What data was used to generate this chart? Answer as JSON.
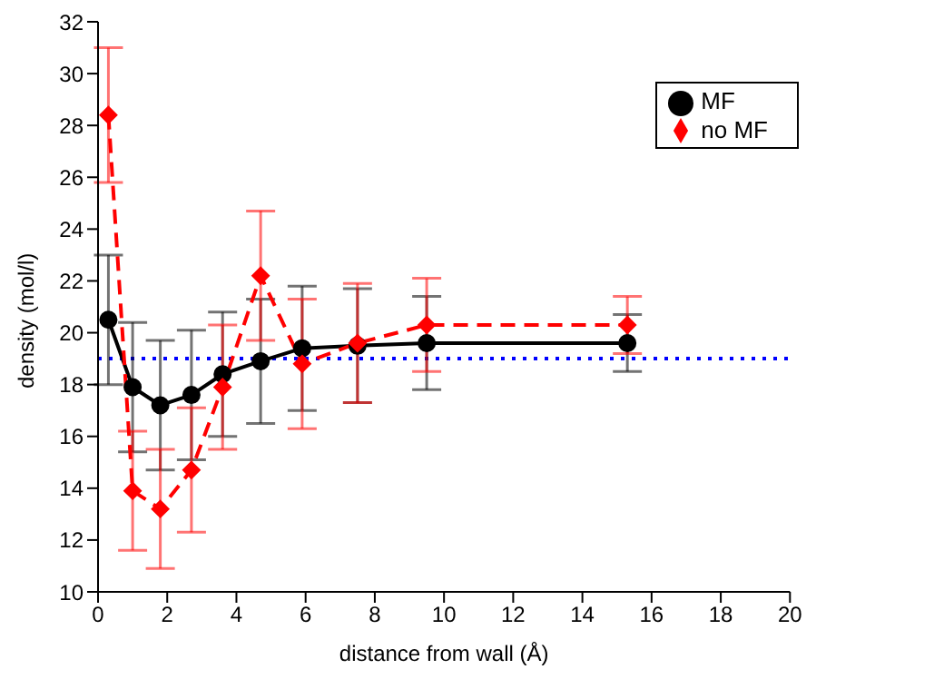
{
  "chart_data": {
    "type": "line",
    "xlabel": "distance from wall (Å)",
    "ylabel": "density (mol/l)",
    "xlim": [
      0,
      20
    ],
    "xticks": [
      0,
      2,
      4,
      6,
      8,
      10,
      12,
      14,
      16,
      18,
      20
    ],
    "ylim": [
      10,
      32
    ],
    "yticks": [
      10,
      12,
      14,
      16,
      18,
      20,
      22,
      24,
      26,
      28,
      30,
      32
    ],
    "legend": "top right",
    "series": [
      {
        "name": "MF",
        "color": "#000000",
        "marker": "circle",
        "line_style": "solid",
        "x": [
          0.3,
          1.0,
          1.8,
          2.7,
          3.6,
          4.7,
          5.9,
          7.5,
          9.5,
          15.3
        ],
        "values": [
          20.5,
          17.9,
          17.2,
          17.6,
          18.4,
          18.9,
          19.4,
          19.5,
          19.6,
          19.6
        ],
        "errors": [
          2.5,
          2.5,
          2.5,
          2.5,
          2.4,
          2.4,
          2.4,
          2.2,
          1.8,
          1.1
        ]
      },
      {
        "name": "no MF",
        "color": "#ff0000",
        "marker": "diamond",
        "line_style": "dashed",
        "x": [
          0.3,
          1.0,
          1.8,
          2.7,
          3.6,
          4.7,
          5.9,
          7.5,
          9.5,
          15.3
        ],
        "values": [
          28.4,
          13.9,
          13.2,
          14.7,
          17.9,
          22.2,
          18.8,
          19.6,
          20.3,
          20.3
        ],
        "errors": [
          2.6,
          2.3,
          2.3,
          2.4,
          2.4,
          2.5,
          2.5,
          2.3,
          1.8,
          1.1
        ]
      }
    ],
    "ref_lines": [
      {
        "axis": "y",
        "value": 19.0,
        "color": "#0000ff",
        "line_style": "dotted"
      }
    ]
  }
}
